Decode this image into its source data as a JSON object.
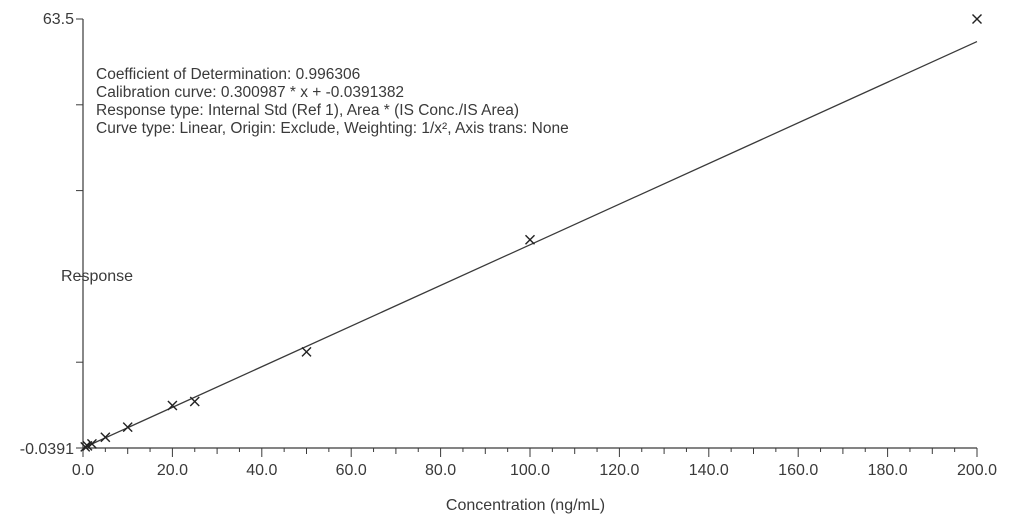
{
  "chart_data": {
    "type": "scatter",
    "title": "",
    "xlabel": "Concentration (ng/mL)",
    "ylabel": "Response",
    "xlim": [
      0,
      200
    ],
    "ylim": [
      -0.0391,
      63.5
    ],
    "x_ticks": [
      "0.0",
      "20.0",
      "40.0",
      "60.0",
      "80.0",
      "100.0",
      "120.0",
      "140.0",
      "160.0",
      "180.0",
      "200.0"
    ],
    "y_tick_labels": {
      "min": "-0.0391",
      "max": "63.5"
    },
    "annotations": [
      "Coefficient of Determination: 0.996306",
      "Calibration curve: 0.300987 * x + -0.0391382",
      "Response type: Internal Std (Ref 1), Area * (IS Conc./IS Area)",
      "Curve type: Linear, Origin: Exclude, Weighting: 1/x², Axis trans: None"
    ],
    "fit": {
      "slope": 0.300987,
      "intercept": -0.0391382
    },
    "series": [
      {
        "marker": "x",
        "x": [
          0.5,
          1,
          2,
          5,
          10,
          20,
          25,
          50,
          100,
          200
        ],
        "y": [
          0.12,
          0.28,
          0.58,
          1.55,
          3.05,
          6.25,
          6.85,
          14.2,
          30.8,
          63.5
        ]
      }
    ],
    "grid": false
  }
}
